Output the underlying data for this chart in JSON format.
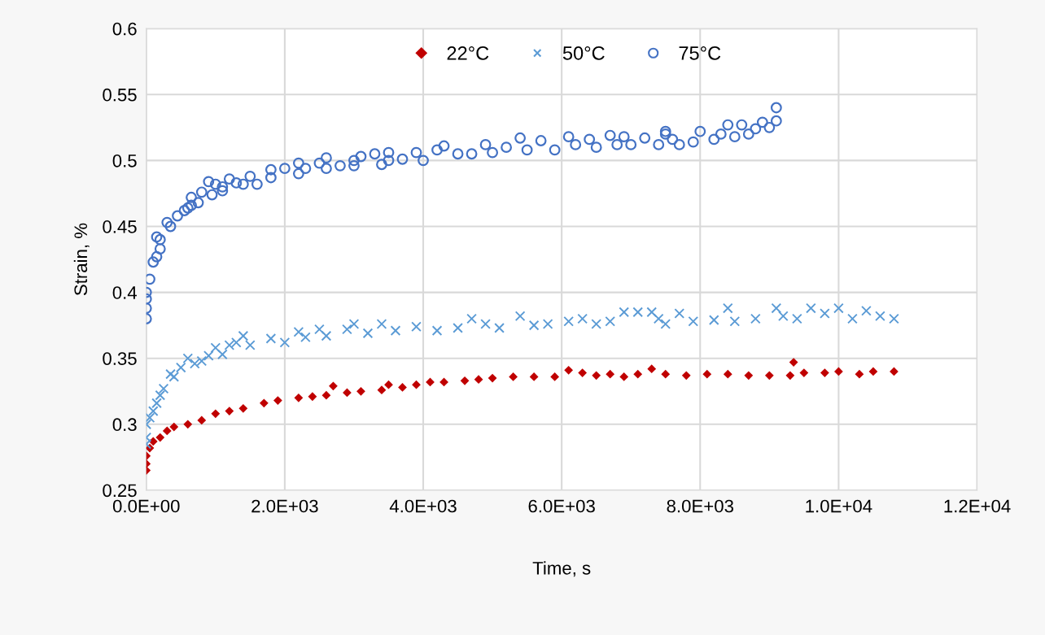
{
  "chart_data": {
    "type": "scatter",
    "xlabel": "Time, s",
    "ylabel": "Strain, %",
    "xlim": [
      0,
      12000
    ],
    "xticks": [
      {
        "value": 0,
        "label": "0.0E+00"
      },
      {
        "value": 2000,
        "label": "2.0E+03"
      },
      {
        "value": 4000,
        "label": "4.0E+03"
      },
      {
        "value": 6000,
        "label": "6.0E+03"
      },
      {
        "value": 8000,
        "label": "8.0E+03"
      },
      {
        "value": 10000,
        "label": "1.0E+04"
      },
      {
        "value": 12000,
        "label": "1.2E+04"
      }
    ],
    "ylim": [
      0.25,
      0.6
    ],
    "yticks": [
      0.25,
      0.3,
      0.35,
      0.4,
      0.45,
      0.5,
      0.55,
      0.6
    ],
    "grid": true,
    "legend": "top",
    "series": [
      {
        "name": "22°C",
        "color": "#c00000",
        "marker": "diamond",
        "x": [
          0,
          0,
          0,
          50,
          100,
          200,
          300,
          400,
          600,
          800,
          1000,
          1200,
          1400,
          1700,
          1900,
          2200,
          2400,
          2600,
          2700,
          2900,
          3100,
          3400,
          3500,
          3700,
          3900,
          4100,
          4300,
          4600,
          4800,
          5000,
          5300,
          5600,
          5900,
          6100,
          6300,
          6500,
          6700,
          6900,
          7100,
          7300,
          7500,
          7800,
          8100,
          8400,
          8700,
          9000,
          9300,
          9350,
          9500,
          9800,
          10000,
          10300,
          10500,
          10800
        ],
        "values": [
          0.265,
          0.27,
          0.276,
          0.282,
          0.287,
          0.29,
          0.295,
          0.298,
          0.3,
          0.303,
          0.308,
          0.31,
          0.312,
          0.316,
          0.318,
          0.32,
          0.321,
          0.322,
          0.329,
          0.324,
          0.325,
          0.326,
          0.33,
          0.328,
          0.33,
          0.332,
          0.332,
          0.333,
          0.334,
          0.335,
          0.336,
          0.336,
          0.336,
          0.341,
          0.339,
          0.337,
          0.338,
          0.336,
          0.338,
          0.342,
          0.338,
          0.337,
          0.338,
          0.338,
          0.337,
          0.337,
          0.337,
          0.347,
          0.339,
          0.339,
          0.34,
          0.338,
          0.34,
          0.34
        ]
      },
      {
        "name": "50°C",
        "color": "#5b9bd5",
        "marker": "cross",
        "x": [
          0,
          0,
          0,
          50,
          100,
          150,
          200,
          250,
          350,
          400,
          500,
          600,
          700,
          800,
          900,
          1000,
          1100,
          1200,
          1300,
          1400,
          1500,
          1800,
          2000,
          2200,
          2300,
          2500,
          2600,
          2900,
          3000,
          3200,
          3400,
          3600,
          3900,
          4200,
          4500,
          4700,
          4900,
          5100,
          5400,
          5600,
          5800,
          6100,
          6300,
          6500,
          6700,
          6900,
          7100,
          7300,
          7400,
          7500,
          7700,
          7900,
          8200,
          8400,
          8500,
          8800,
          9100,
          9200,
          9400,
          9600,
          9800,
          10000,
          10200,
          10400,
          10600,
          10800
        ],
        "values": [
          0.285,
          0.29,
          0.3,
          0.305,
          0.31,
          0.316,
          0.322,
          0.327,
          0.338,
          0.336,
          0.343,
          0.35,
          0.346,
          0.348,
          0.352,
          0.358,
          0.353,
          0.36,
          0.362,
          0.367,
          0.36,
          0.365,
          0.362,
          0.37,
          0.366,
          0.372,
          0.367,
          0.372,
          0.376,
          0.369,
          0.376,
          0.371,
          0.374,
          0.371,
          0.373,
          0.38,
          0.376,
          0.373,
          0.382,
          0.375,
          0.376,
          0.378,
          0.38,
          0.376,
          0.378,
          0.385,
          0.385,
          0.385,
          0.38,
          0.376,
          0.384,
          0.378,
          0.379,
          0.388,
          0.378,
          0.38,
          0.388,
          0.382,
          0.38,
          0.388,
          0.384,
          0.388,
          0.38,
          0.386,
          0.382,
          0.38
        ]
      },
      {
        "name": "75°C",
        "color": "#4472c4",
        "marker": "circle",
        "x": [
          0,
          0,
          0,
          0,
          50,
          100,
          150,
          150,
          200,
          200,
          300,
          350,
          450,
          550,
          600,
          650,
          650,
          750,
          800,
          900,
          950,
          1000,
          1100,
          1100,
          1200,
          1300,
          1400,
          1500,
          1600,
          1800,
          1800,
          2000,
          2200,
          2200,
          2300,
          2500,
          2600,
          2600,
          2800,
          3000,
          3000,
          3100,
          3300,
          3400,
          3500,
          3500,
          3700,
          3900,
          4000,
          4200,
          4300,
          4500,
          4700,
          4900,
          5000,
          5200,
          5400,
          5500,
          5700,
          5900,
          6100,
          6200,
          6400,
          6500,
          6700,
          6800,
          6900,
          7000,
          7200,
          7400,
          7500,
          7500,
          7600,
          7700,
          7900,
          8000,
          8200,
          8300,
          8400,
          8500,
          8600,
          8700,
          8800,
          8900,
          9000,
          9100,
          9100
        ],
        "values": [
          0.38,
          0.388,
          0.395,
          0.4,
          0.41,
          0.423,
          0.427,
          0.442,
          0.433,
          0.44,
          0.453,
          0.45,
          0.458,
          0.462,
          0.464,
          0.472,
          0.466,
          0.468,
          0.476,
          0.484,
          0.474,
          0.482,
          0.477,
          0.48,
          0.486,
          0.483,
          0.482,
          0.488,
          0.482,
          0.493,
          0.487,
          0.494,
          0.49,
          0.498,
          0.494,
          0.498,
          0.502,
          0.494,
          0.496,
          0.5,
          0.496,
          0.503,
          0.505,
          0.497,
          0.506,
          0.5,
          0.501,
          0.506,
          0.5,
          0.508,
          0.511,
          0.505,
          0.505,
          0.512,
          0.506,
          0.51,
          0.517,
          0.508,
          0.515,
          0.508,
          0.518,
          0.512,
          0.516,
          0.51,
          0.519,
          0.512,
          0.518,
          0.512,
          0.517,
          0.512,
          0.52,
          0.522,
          0.516,
          0.512,
          0.514,
          0.522,
          0.516,
          0.52,
          0.527,
          0.518,
          0.527,
          0.52,
          0.524,
          0.529,
          0.525,
          0.53,
          0.54
        ]
      }
    ]
  }
}
